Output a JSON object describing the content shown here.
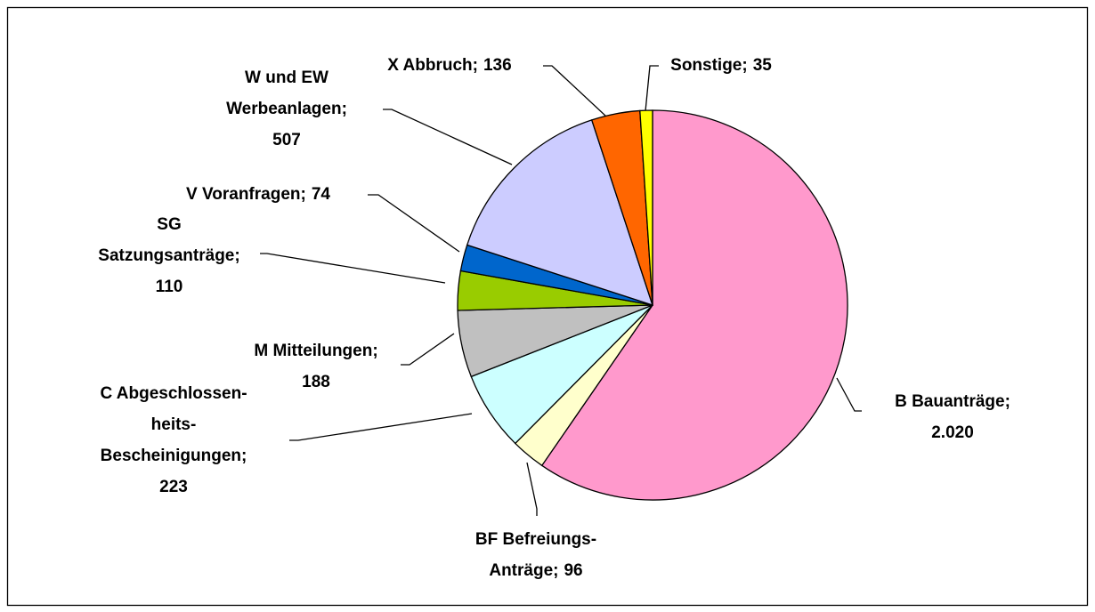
{
  "chart_data": {
    "type": "pie",
    "categories": [
      "B Bauanträge;",
      "BF Befreiungs-\nAnträge;",
      "C Abgeschlossen-\nheits-\nBescheinigungen;",
      "M Mitteilungen;",
      "SG\nSatzungsanträge;",
      "V Voranfragen;",
      "W und EW\nWerbeanlagen;",
      "X Abbruch;",
      "Sonstige;"
    ],
    "values": [
      2020,
      96,
      223,
      188,
      110,
      74,
      507,
      136,
      35
    ],
    "value_labels": [
      "2.020",
      "96",
      "223",
      "188",
      "110",
      "74",
      "507",
      "136",
      "35"
    ],
    "colors": [
      "#ff99cc",
      "#ffffcc",
      "#ccffff",
      "#c0c0c0",
      "#99cc00",
      "#0066cc",
      "#ccccff",
      "#ff6600",
      "#ffff00"
    ]
  }
}
